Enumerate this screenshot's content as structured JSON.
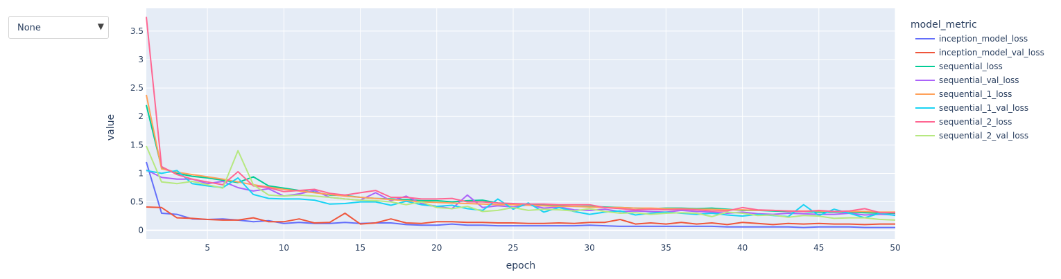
{
  "dropdown": {
    "value": "None",
    "arrow_icon": "triangle-down"
  },
  "chart_data": {
    "type": "line",
    "xlabel": "epoch",
    "ylabel": "value",
    "legend_title": "model_metric",
    "legend_position": "right",
    "xlim": [
      1,
      50
    ],
    "ylim": [
      -0.15,
      3.9
    ],
    "xticks": [
      5,
      10,
      15,
      20,
      25,
      30,
      35,
      40,
      45,
      50
    ],
    "yticks": [
      0,
      0.5,
      1,
      1.5,
      2,
      2.5,
      3,
      3.5
    ],
    "ytick_labels": [
      "0",
      "0.5",
      "1",
      "1.5",
      "2",
      "2.5",
      "3",
      "3.5"
    ],
    "grid": true,
    "background": "#e5ecf6",
    "x": [
      1,
      2,
      3,
      4,
      5,
      6,
      7,
      8,
      9,
      10,
      11,
      12,
      13,
      14,
      15,
      16,
      17,
      18,
      19,
      20,
      21,
      22,
      23,
      24,
      25,
      26,
      27,
      28,
      29,
      30,
      31,
      32,
      33,
      34,
      35,
      36,
      37,
      38,
      39,
      40,
      41,
      42,
      43,
      44,
      45,
      46,
      47,
      48,
      49,
      50
    ],
    "series": [
      {
        "name": "inception_model_loss",
        "color": "#636efa",
        "values": [
          1.2,
          0.3,
          0.28,
          0.2,
          0.19,
          0.2,
          0.18,
          0.15,
          0.17,
          0.12,
          0.14,
          0.12,
          0.12,
          0.14,
          0.12,
          0.13,
          0.13,
          0.1,
          0.09,
          0.09,
          0.11,
          0.09,
          0.09,
          0.08,
          0.08,
          0.08,
          0.08,
          0.08,
          0.08,
          0.09,
          0.08,
          0.07,
          0.07,
          0.07,
          0.07,
          0.07,
          0.07,
          0.07,
          0.06,
          0.06,
          0.06,
          0.06,
          0.06,
          0.05,
          0.06,
          0.06,
          0.06,
          0.05,
          0.05,
          0.05
        ]
      },
      {
        "name": "inception_model_val_loss",
        "color": "#EF553B",
        "values": [
          0.41,
          0.4,
          0.22,
          0.21,
          0.19,
          0.18,
          0.18,
          0.22,
          0.15,
          0.15,
          0.2,
          0.13,
          0.14,
          0.3,
          0.11,
          0.13,
          0.2,
          0.13,
          0.12,
          0.15,
          0.15,
          0.14,
          0.14,
          0.13,
          0.13,
          0.12,
          0.12,
          0.13,
          0.12,
          0.14,
          0.14,
          0.19,
          0.11,
          0.13,
          0.11,
          0.14,
          0.11,
          0.13,
          0.1,
          0.14,
          0.12,
          0.1,
          0.12,
          0.11,
          0.12,
          0.11,
          0.11,
          0.1,
          0.11,
          0.11
        ]
      },
      {
        "name": "sequential_loss",
        "color": "#00cc96",
        "values": [
          2.2,
          1.1,
          1.0,
          0.95,
          0.92,
          0.88,
          0.84,
          0.94,
          0.78,
          0.74,
          0.7,
          0.67,
          0.62,
          0.61,
          0.58,
          0.56,
          0.55,
          0.54,
          0.52,
          0.52,
          0.5,
          0.52,
          0.53,
          0.48,
          0.46,
          0.45,
          0.44,
          0.43,
          0.42,
          0.42,
          0.41,
          0.4,
          0.39,
          0.38,
          0.39,
          0.39,
          0.38,
          0.39,
          0.37,
          0.35,
          0.35,
          0.34,
          0.33,
          0.33,
          0.32,
          0.32,
          0.32,
          0.31,
          0.3,
          0.3
        ]
      },
      {
        "name": "sequential_val_loss",
        "color": "#ab63fa",
        "values": [
          1.06,
          0.93,
          0.9,
          0.9,
          0.82,
          0.86,
          0.75,
          0.69,
          0.73,
          0.6,
          0.64,
          0.7,
          0.58,
          0.55,
          0.53,
          0.66,
          0.52,
          0.6,
          0.47,
          0.42,
          0.38,
          0.62,
          0.4,
          0.43,
          0.41,
          0.45,
          0.39,
          0.41,
          0.36,
          0.35,
          0.37,
          0.33,
          0.34,
          0.33,
          0.32,
          0.35,
          0.33,
          0.32,
          0.3,
          0.32,
          0.29,
          0.28,
          0.3,
          0.29,
          0.28,
          0.28,
          0.3,
          0.27,
          0.28,
          0.27
        ]
      },
      {
        "name": "sequential_1_loss",
        "color": "#FFA15A",
        "values": [
          2.38,
          1.08,
          1.02,
          0.98,
          0.94,
          0.9,
          0.85,
          0.8,
          0.76,
          0.72,
          0.69,
          0.66,
          0.63,
          0.6,
          0.58,
          0.56,
          0.54,
          0.52,
          0.5,
          0.49,
          0.48,
          0.47,
          0.46,
          0.45,
          0.45,
          0.44,
          0.43,
          0.42,
          0.42,
          0.41,
          0.4,
          0.4,
          0.39,
          0.39,
          0.38,
          0.38,
          0.37,
          0.37,
          0.36,
          0.36,
          0.35,
          0.35,
          0.34,
          0.34,
          0.34,
          0.33,
          0.33,
          0.33,
          0.32,
          0.32
        ]
      },
      {
        "name": "sequential_1_val_loss",
        "color": "#19d3f3",
        "values": [
          1.05,
          1.0,
          1.05,
          0.82,
          0.78,
          0.75,
          0.92,
          0.63,
          0.56,
          0.55,
          0.55,
          0.53,
          0.46,
          0.47,
          0.5,
          0.5,
          0.44,
          0.51,
          0.45,
          0.42,
          0.44,
          0.38,
          0.35,
          0.55,
          0.37,
          0.48,
          0.32,
          0.4,
          0.33,
          0.28,
          0.32,
          0.34,
          0.27,
          0.3,
          0.32,
          0.3,
          0.28,
          0.3,
          0.27,
          0.25,
          0.28,
          0.26,
          0.24,
          0.45,
          0.26,
          0.37,
          0.3,
          0.22,
          0.3,
          0.26
        ]
      },
      {
        "name": "sequential_2_loss",
        "color": "#FF6692",
        "values": [
          3.75,
          1.12,
          0.98,
          0.9,
          0.85,
          0.8,
          1.03,
          0.78,
          0.75,
          0.68,
          0.7,
          0.72,
          0.65,
          0.62,
          0.66,
          0.7,
          0.58,
          0.58,
          0.55,
          0.55,
          0.56,
          0.5,
          0.5,
          0.48,
          0.47,
          0.46,
          0.46,
          0.45,
          0.45,
          0.45,
          0.4,
          0.38,
          0.36,
          0.37,
          0.36,
          0.37,
          0.36,
          0.34,
          0.34,
          0.4,
          0.36,
          0.35,
          0.34,
          0.33,
          0.35,
          0.33,
          0.34,
          0.38,
          0.31,
          0.31
        ]
      },
      {
        "name": "sequential_2_val_loss",
        "color": "#B6E880",
        "values": [
          1.48,
          0.85,
          0.82,
          0.86,
          0.8,
          0.74,
          1.4,
          0.8,
          0.62,
          0.6,
          0.62,
          0.6,
          0.58,
          0.55,
          0.53,
          0.52,
          0.5,
          0.45,
          0.5,
          0.4,
          0.38,
          0.42,
          0.33,
          0.35,
          0.4,
          0.35,
          0.37,
          0.36,
          0.34,
          0.38,
          0.33,
          0.3,
          0.31,
          0.28,
          0.3,
          0.31,
          0.3,
          0.24,
          0.32,
          0.3,
          0.26,
          0.27,
          0.23,
          0.26,
          0.25,
          0.21,
          0.22,
          0.22,
          0.19,
          0.18
        ]
      }
    ]
  }
}
